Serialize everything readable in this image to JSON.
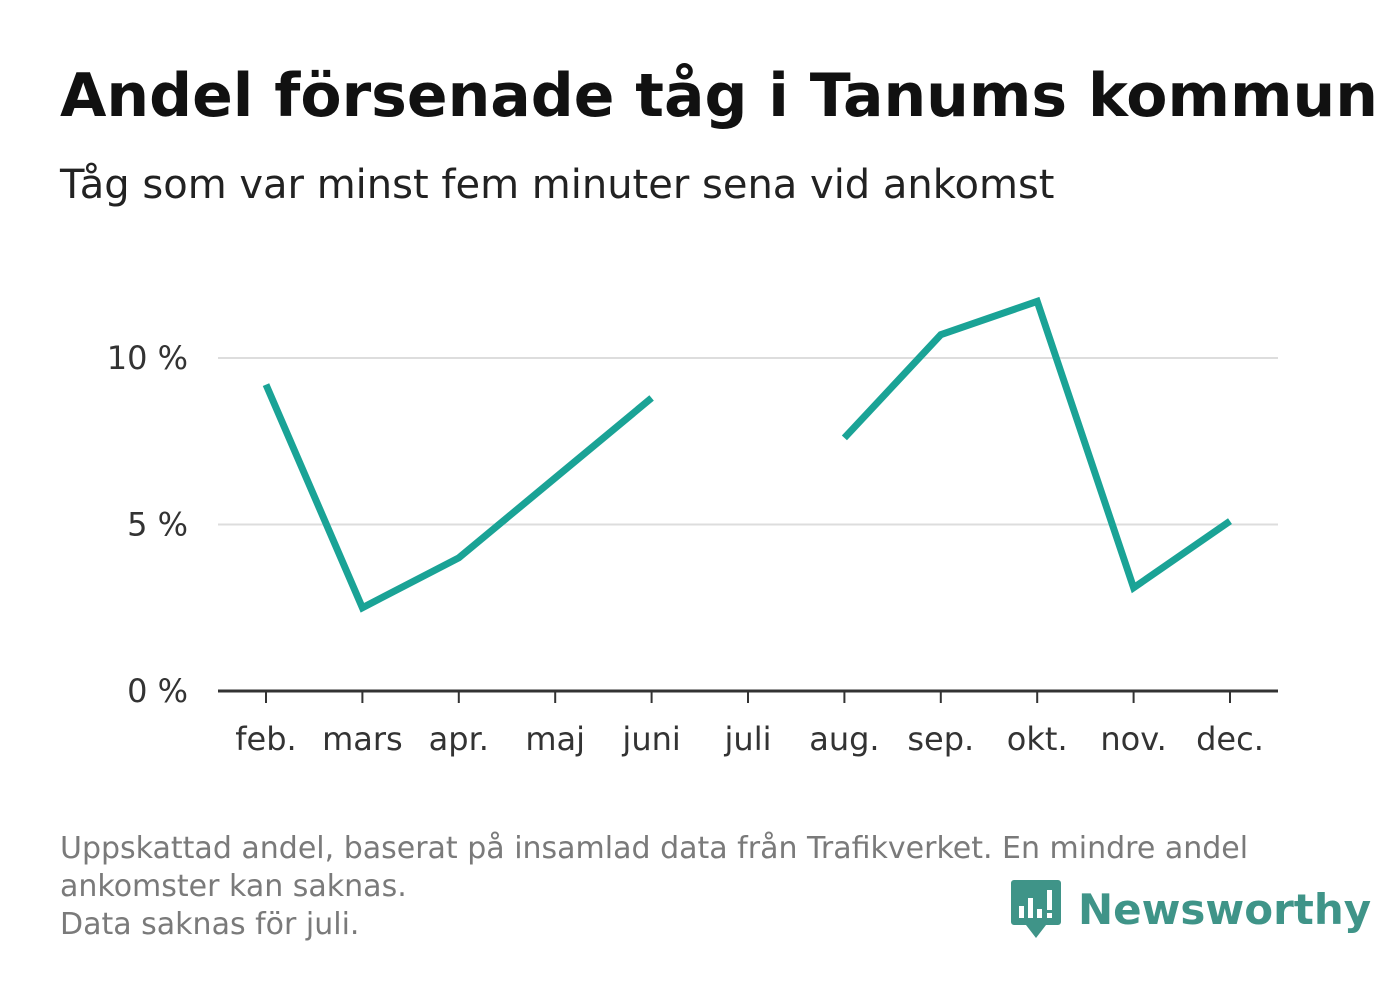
{
  "title": "Andel försenade tåg i Tanums kommun",
  "subtitle": "Tåg som var minst fem minuter sena vid ankomst",
  "footnote": {
    "line1": "Uppskattad andel, baserat på insamlad data från Trafikverket. En mindre andel",
    "line2": "ankomster kan saknas.",
    "line3": "Data saknas för juli."
  },
  "brand": {
    "name": "Newsworthy",
    "icon": "newsworthy-logo-icon"
  },
  "colors": {
    "line": "#1aa396",
    "grid": "#dddddd",
    "axis": "#333333",
    "brand": "#3f9488"
  },
  "chart_data": {
    "type": "line",
    "title": "Andel försenade tåg i Tanums kommun",
    "subtitle": "Tåg som var minst fem minuter sena vid ankomst",
    "xlabel": "",
    "ylabel": "",
    "categories": [
      "feb.",
      "mars",
      "apr.",
      "maj",
      "juni",
      "juli",
      "aug.",
      "sep.",
      "okt.",
      "nov.",
      "dec."
    ],
    "series": [
      {
        "values": [
          9.2,
          2.5,
          4.0,
          6.4,
          8.8,
          null,
          7.6,
          10.7,
          11.7,
          3.1,
          5.1
        ]
      }
    ],
    "y_ticks": [
      0,
      5,
      10
    ],
    "y_tick_labels": [
      "0 %",
      "5 %",
      "10 %"
    ],
    "ylim": [
      0,
      12
    ],
    "grid": true,
    "legend": "none"
  }
}
